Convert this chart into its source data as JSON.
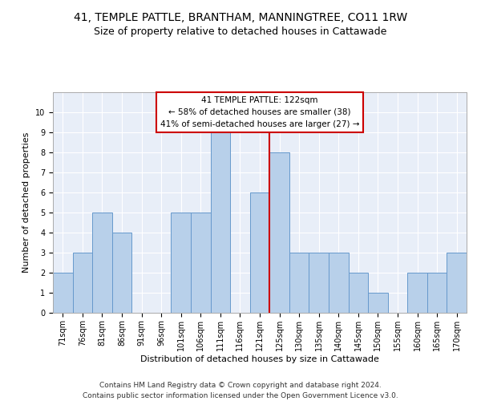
{
  "title": "41, TEMPLE PATTLE, BRANTHAM, MANNINGTREE, CO11 1RW",
  "subtitle": "Size of property relative to detached houses in Cattawade",
  "xlabel": "Distribution of detached houses by size in Cattawade",
  "ylabel": "Number of detached properties",
  "footer_line1": "Contains HM Land Registry data © Crown copyright and database right 2024.",
  "footer_line2": "Contains public sector information licensed under the Open Government Licence v3.0.",
  "categories": [
    "71sqm",
    "76sqm",
    "81sqm",
    "86sqm",
    "91sqm",
    "96sqm",
    "101sqm",
    "106sqm",
    "111sqm",
    "116sqm",
    "121sqm",
    "125sqm",
    "130sqm",
    "135sqm",
    "140sqm",
    "145sqm",
    "150sqm",
    "155sqm",
    "160sqm",
    "165sqm",
    "170sqm"
  ],
  "values": [
    2,
    3,
    5,
    4,
    0,
    0,
    5,
    5,
    9,
    0,
    6,
    8,
    3,
    3,
    3,
    2,
    1,
    0,
    2,
    2,
    3
  ],
  "bar_color": "#b8d0ea",
  "bar_edge_color": "#6699cc",
  "marker_color": "#cc0000",
  "annotation_title": "41 TEMPLE PATTLE: 122sqm",
  "annotation_line2": "← 58% of detached houses are smaller (38)",
  "annotation_line3": "41% of semi-detached houses are larger (27) →",
  "ylim": [
    0,
    11
  ],
  "yticks": [
    0,
    1,
    2,
    3,
    4,
    5,
    6,
    7,
    8,
    9,
    10
  ],
  "background_color": "#e8eef8",
  "grid_color": "#ffffff",
  "title_fontsize": 10,
  "subtitle_fontsize": 9,
  "axis_label_fontsize": 8,
  "tick_fontsize": 7,
  "footer_fontsize": 6.5,
  "annotation_fontsize": 7.5
}
